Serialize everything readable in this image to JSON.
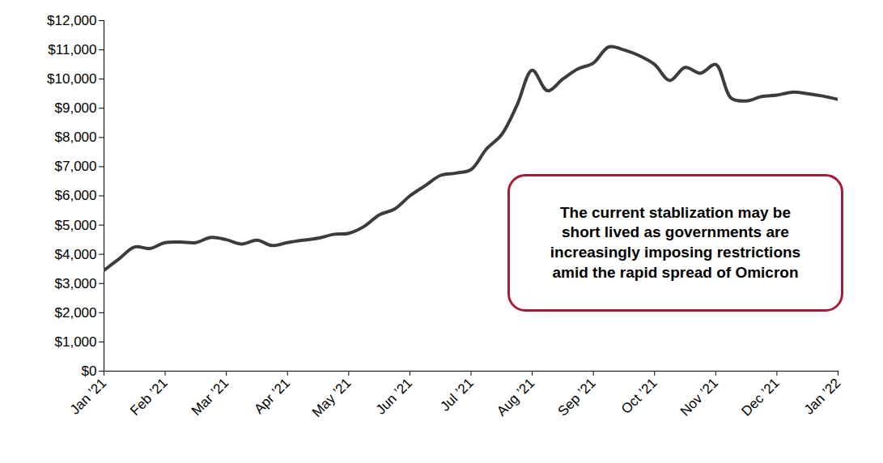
{
  "chart_data": {
    "type": "line",
    "color": "#3c3c3c",
    "grid": false,
    "annotation": "The current stablization may be\nshort lived as governments are\nincreasingly imposing restrictions\namid the rapid spread of Omicron",
    "x": [
      0,
      0.25,
      0.5,
      0.75,
      1,
      1.25,
      1.5,
      1.75,
      2,
      2.25,
      2.5,
      2.75,
      3,
      3.25,
      3.5,
      3.75,
      4,
      4.25,
      4.5,
      4.75,
      5,
      5.25,
      5.5,
      5.75,
      6,
      6.25,
      6.5,
      6.75,
      7,
      7.25,
      7.5,
      7.75,
      8,
      8.25,
      8.5,
      8.75,
      9,
      9.25,
      9.5,
      9.75,
      10,
      10.25,
      10.5,
      10.75,
      11,
      11.25,
      11.5,
      11.75,
      12
    ],
    "values": [
      3450,
      3850,
      4250,
      4200,
      4400,
      4420,
      4400,
      4580,
      4500,
      4350,
      4480,
      4300,
      4400,
      4480,
      4550,
      4680,
      4720,
      4950,
      5350,
      5550,
      6000,
      6350,
      6700,
      6780,
      6900,
      7600,
      8100,
      9100,
      10300,
      9600,
      10000,
      10350,
      10550,
      11100,
      11000,
      10800,
      10500,
      9950,
      10400,
      10200,
      10500,
      9350,
      9250,
      9400,
      9450,
      9550,
      9500,
      9420,
      9300
    ],
    "xlim": [
      0,
      12
    ],
    "xticks": [
      {
        "value": 0,
        "label": "Jan ’21"
      },
      {
        "value": 1,
        "label": "Feb ’21"
      },
      {
        "value": 2,
        "label": "Mar ’21"
      },
      {
        "value": 3,
        "label": "Apr ’21"
      },
      {
        "value": 4,
        "label": "May ’21"
      },
      {
        "value": 5,
        "label": "Jun ’21"
      },
      {
        "value": 6,
        "label": "Jul ’21"
      },
      {
        "value": 7,
        "label": "Aug ’21"
      },
      {
        "value": 8,
        "label": "Sep ’21"
      },
      {
        "value": 9,
        "label": "Oct ’21"
      },
      {
        "value": 10,
        "label": "Nov ’21"
      },
      {
        "value": 11,
        "label": "Dec ’21"
      },
      {
        "value": 12,
        "label": "Jan ’22"
      }
    ],
    "ylim": [
      0,
      12000
    ],
    "yticks": [
      {
        "value": 0,
        "label": "$0"
      },
      {
        "value": 1000,
        "label": "$1,000"
      },
      {
        "value": 2000,
        "label": "$2,000"
      },
      {
        "value": 3000,
        "label": "$3,000"
      },
      {
        "value": 4000,
        "label": "$4,000"
      },
      {
        "value": 5000,
        "label": "$5,000"
      },
      {
        "value": 6000,
        "label": "$6,000"
      },
      {
        "value": 7000,
        "label": "$7,000"
      },
      {
        "value": 8000,
        "label": "$8,000"
      },
      {
        "value": 9000,
        "label": "$9,000"
      },
      {
        "value": 10000,
        "label": "$10,000"
      },
      {
        "value": 11000,
        "label": "$11,000"
      },
      {
        "value": 12000,
        "label": "$12,000"
      }
    ]
  }
}
